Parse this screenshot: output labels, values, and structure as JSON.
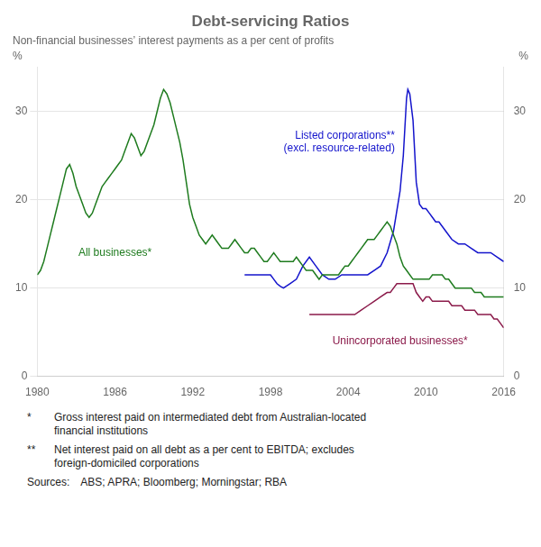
{
  "chart_data": {
    "type": "line",
    "title": "Debt-servicing Ratios",
    "subtitle": "Non-financial businesses’ interest payments as a per cent of profits",
    "ylabel_left": "%",
    "ylabel_right": "%",
    "xlim": [
      1980,
      2016
    ],
    "xticks": [
      1980,
      1986,
      1992,
      1998,
      2004,
      2010,
      2016
    ],
    "ylim": [
      0,
      35
    ],
    "yticks": [
      0,
      10,
      20,
      30
    ],
    "y2lim": [
      0,
      35
    ],
    "y2ticks": [
      0,
      10,
      20,
      30
    ],
    "grid": "y",
    "footnotes": [
      {
        "mark": "*",
        "text": "Gross interest paid on intermediated debt from Australian-located\nfinancial institutions"
      },
      {
        "mark": "**",
        "text": "Net interest paid on all debt as a per cent to EBITDA; excludes\nforeign-domiciled corporations"
      }
    ],
    "source": "Sources: ABS; APRA; Bloomberg; Morningstar; RBA",
    "series": [
      {
        "name": "All businesses*",
        "color": "#1e7b1e",
        "x": [
          1980,
          1980.25,
          1980.5,
          1980.75,
          1981,
          1981.25,
          1981.5,
          1981.75,
          1982,
          1982.25,
          1982.5,
          1982.75,
          1983,
          1983.25,
          1983.5,
          1983.75,
          1984,
          1984.25,
          1984.5,
          1984.75,
          1985,
          1985.25,
          1985.5,
          1985.75,
          1986,
          1986.25,
          1986.5,
          1986.75,
          1987,
          1987.25,
          1987.5,
          1987.75,
          1988,
          1988.25,
          1988.5,
          1988.75,
          1989,
          1989.25,
          1989.5,
          1989.75,
          1990,
          1990.25,
          1990.5,
          1990.75,
          1991,
          1991.25,
          1991.5,
          1991.75,
          1992,
          1992.25,
          1992.5,
          1992.75,
          1993,
          1993.25,
          1993.5,
          1993.75,
          1994,
          1994.25,
          1994.5,
          1994.75,
          1995,
          1995.25,
          1995.5,
          1995.75,
          1996,
          1996.25,
          1996.5,
          1996.75,
          1997,
          1997.25,
          1997.5,
          1997.75,
          1998,
          1998.25,
          1998.5,
          1998.75,
          1999,
          1999.25,
          1999.5,
          1999.75,
          2000,
          2000.25,
          2000.5,
          2000.75,
          2001,
          2001.25,
          2001.5,
          2001.75,
          2002,
          2002.25,
          2002.5,
          2002.75,
          2003,
          2003.25,
          2003.5,
          2003.75,
          2004,
          2004.25,
          2004.5,
          2004.75,
          2005,
          2005.25,
          2005.5,
          2005.75,
          2006,
          2006.25,
          2006.5,
          2006.75,
          2007,
          2007.25,
          2007.5,
          2007.75,
          2008,
          2008.25,
          2008.5,
          2008.75,
          2009,
          2009.25,
          2009.5,
          2009.75,
          2010,
          2010.25,
          2010.5,
          2010.75,
          2011,
          2011.25,
          2011.5,
          2011.75,
          2012,
          2012.25,
          2012.5,
          2012.75,
          2013,
          2013.25,
          2013.5,
          2013.75,
          2014,
          2014.25,
          2014.5,
          2014.75,
          2015,
          2015.25,
          2015.5,
          2015.75,
          2016
        ],
        "values": [
          11.5,
          12.0,
          13.0,
          14.5,
          16.0,
          17.5,
          19.0,
          20.5,
          22.0,
          23.5,
          24.0,
          23.0,
          21.5,
          20.5,
          19.5,
          18.5,
          18.0,
          18.5,
          19.5,
          20.5,
          21.5,
          22.0,
          22.5,
          23.0,
          23.5,
          24.0,
          24.5,
          25.5,
          26.5,
          27.5,
          27.0,
          26.0,
          25.0,
          25.5,
          26.5,
          27.5,
          28.5,
          30.0,
          31.5,
          32.5,
          32.0,
          31.0,
          29.5,
          28.0,
          26.5,
          24.5,
          22.0,
          19.5,
          18.0,
          17.0,
          16.0,
          15.5,
          15.0,
          15.5,
          16.0,
          15.5,
          15.0,
          14.5,
          14.5,
          14.5,
          15.0,
          15.5,
          15.0,
          14.5,
          14.0,
          14.0,
          14.5,
          14.5,
          14.0,
          13.5,
          13.0,
          13.0,
          13.5,
          14.0,
          13.5,
          13.0,
          13.0,
          13.0,
          13.0,
          13.0,
          13.5,
          13.0,
          12.5,
          12.0,
          12.0,
          12.0,
          11.5,
          11.0,
          11.5,
          11.5,
          11.5,
          11.5,
          11.5,
          11.5,
          12.0,
          12.5,
          12.5,
          13.0,
          13.5,
          14.0,
          14.5,
          15.0,
          15.5,
          15.5,
          15.5,
          16.0,
          16.5,
          17.0,
          17.5,
          17.0,
          16.0,
          15.0,
          13.5,
          12.5,
          12.0,
          11.5,
          11.0,
          11.0,
          11.0,
          11.0,
          11.0,
          11.0,
          11.5,
          11.5,
          11.5,
          11.5,
          11.0,
          11.0,
          10.5,
          10.0,
          10.0,
          10.0,
          10.0,
          10.0,
          10.0,
          9.5,
          9.5,
          9.5,
          9.0,
          9.0,
          9.0,
          9.0,
          9.0,
          9.0,
          9.0
        ]
      },
      {
        "name": "Listed corporations**\n(excl. resource-related)",
        "color": "#1414cc",
        "x": [
          1996,
          1996.5,
          1997,
          1997.5,
          1998,
          1998.25,
          1998.5,
          1998.75,
          1999,
          1999.5,
          2000,
          2000.5,
          2001,
          2001.5,
          2002,
          2002.5,
          2003,
          2003.5,
          2004,
          2004.5,
          2005,
          2005.5,
          2006,
          2006.5,
          2007,
          2007.5,
          2008,
          2008.25,
          2008.5,
          2008.6,
          2008.75,
          2009,
          2009.25,
          2009.5,
          2009.75,
          2010,
          2010.25,
          2010.5,
          2010.75,
          2011,
          2011.5,
          2012,
          2012.5,
          2013,
          2013.5,
          2014,
          2014.5,
          2015,
          2015.5,
          2016
        ],
        "values": [
          11.5,
          11.5,
          11.5,
          11.5,
          11.5,
          11.0,
          10.5,
          10.2,
          10.0,
          10.5,
          11.0,
          12.5,
          13.5,
          12.5,
          11.5,
          11.0,
          11.0,
          11.5,
          11.5,
          11.5,
          11.5,
          11.5,
          12.0,
          12.5,
          14.0,
          16.5,
          21.0,
          25.0,
          31.5,
          32.5,
          32.0,
          29.0,
          22.0,
          19.5,
          19.0,
          19.0,
          18.5,
          18.0,
          17.5,
          17.5,
          16.5,
          15.5,
          15.0,
          15.0,
          14.5,
          14.0,
          14.0,
          14.0,
          13.5,
          13.0
        ]
      },
      {
        "name": "Unincorporated businesses*",
        "color": "#8b1a4a",
        "x": [
          2001,
          2001.5,
          2002,
          2002.5,
          2003,
          2003.5,
          2004,
          2004.5,
          2005,
          2005.5,
          2006,
          2006.5,
          2007,
          2007.25,
          2007.5,
          2007.75,
          2008,
          2008.25,
          2008.5,
          2008.75,
          2009,
          2009.25,
          2009.5,
          2009.75,
          2010,
          2010.25,
          2010.5,
          2010.75,
          2011,
          2011.25,
          2011.5,
          2011.75,
          2012,
          2012.25,
          2012.5,
          2012.75,
          2013,
          2013.25,
          2013.5,
          2013.75,
          2014,
          2014.25,
          2014.5,
          2014.75,
          2015,
          2015.25,
          2015.5,
          2015.75,
          2016
        ],
        "values": [
          7.0,
          7.0,
          7.0,
          7.0,
          7.0,
          7.0,
          7.0,
          7.0,
          7.5,
          8.0,
          8.5,
          9.0,
          9.5,
          9.5,
          10.0,
          10.5,
          10.5,
          10.5,
          10.5,
          10.5,
          10.5,
          9.5,
          9.0,
          8.5,
          9.0,
          9.0,
          8.5,
          8.5,
          8.5,
          8.5,
          8.5,
          8.5,
          8.0,
          8.0,
          8.0,
          8.0,
          7.5,
          7.5,
          7.5,
          7.5,
          7.0,
          7.0,
          7.0,
          7.0,
          7.0,
          6.5,
          6.5,
          6.0,
          5.5
        ]
      }
    ]
  }
}
